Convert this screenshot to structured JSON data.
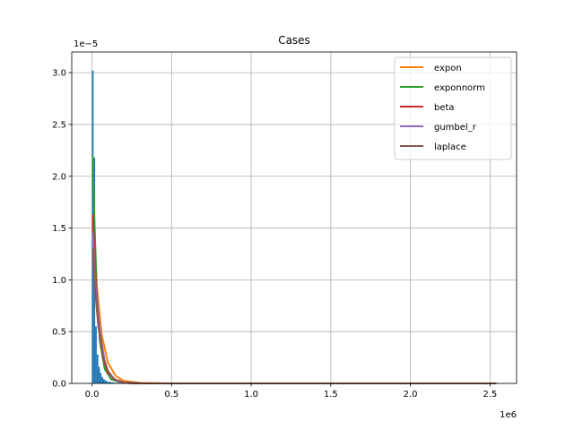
{
  "chart_data": {
    "type": "histogram",
    "title": "Cases",
    "xlabel": "",
    "ylabel": "",
    "x_scale_label": "1e6",
    "y_scale_label": "1e−5",
    "xlim": [
      -0.127,
      2.667
    ],
    "ylim": [
      0,
      3.2
    ],
    "x_ticks": [
      0.0,
      0.5,
      1.0,
      1.5,
      2.0,
      2.5
    ],
    "x_tick_labels": [
      "0.0",
      "0.5",
      "1.0",
      "1.5",
      "2.0",
      "2.5"
    ],
    "y_ticks": [
      0.0,
      0.5,
      1.0,
      1.5,
      2.0,
      2.5,
      3.0
    ],
    "y_tick_labels": [
      "0.0",
      "0.5",
      "1.0",
      "1.5",
      "2.0",
      "2.5",
      "3.0"
    ],
    "grid": true,
    "legend_position": "top-right",
    "histogram": {
      "color": "#1f77b4",
      "bin_edges": [
        0.0,
        0.01,
        0.02,
        0.03,
        0.04,
        0.05,
        0.06,
        0.07,
        0.08,
        0.09,
        0.1,
        0.12,
        0.14,
        0.16,
        0.2
      ],
      "densities": [
        3.02,
        2.18,
        0.55,
        0.28,
        0.16,
        0.1,
        0.06,
        0.04,
        0.03,
        0.02,
        0.015,
        0.01,
        0.006,
        0.003
      ]
    },
    "x_max": 2.54,
    "series": [
      {
        "name": "expon",
        "color": "#ff7f0e",
        "x": [
          0.005,
          0.03,
          0.06,
          0.1,
          0.15,
          0.2,
          0.3,
          0.5,
          1.0,
          2.54
        ],
        "y": [
          1.62,
          0.95,
          0.48,
          0.2,
          0.07,
          0.025,
          0.005,
          0.0,
          0.0,
          0.0
        ]
      },
      {
        "name": "exponnorm",
        "color": "#2ca02c",
        "x": [
          0.005,
          0.015,
          0.03,
          0.05,
          0.08,
          0.12,
          0.18,
          0.3,
          1.0,
          2.54
        ],
        "y": [
          2.2,
          1.6,
          0.9,
          0.4,
          0.14,
          0.04,
          0.01,
          0.0,
          0.0,
          0.0
        ]
      },
      {
        "name": "beta",
        "color": "#d62728",
        "x": [
          0.005,
          0.02,
          0.04,
          0.07,
          0.1,
          0.15,
          0.2,
          0.3,
          1.0,
          2.54
        ],
        "y": [
          1.63,
          1.1,
          0.6,
          0.25,
          0.1,
          0.03,
          0.01,
          0.0,
          0.0,
          0.0
        ]
      },
      {
        "name": "gumbel_r",
        "color": "#9467bd",
        "x": [
          0.005,
          0.02,
          0.04,
          0.06,
          0.08,
          0.1,
          0.13,
          0.17,
          0.25,
          1.0,
          2.54
        ],
        "y": [
          1.45,
          1.0,
          0.65,
          0.4,
          0.22,
          0.12,
          0.05,
          0.015,
          0.0,
          0.0,
          0.0
        ]
      },
      {
        "name": "laplace",
        "color": "#8c564b",
        "x": [
          0.005,
          0.02,
          0.04,
          0.07,
          0.1,
          0.14,
          0.2,
          0.3,
          1.0,
          2.54
        ],
        "y": [
          1.3,
          0.9,
          0.55,
          0.25,
          0.12,
          0.04,
          0.01,
          0.0,
          0.0,
          0.0
        ]
      }
    ]
  }
}
